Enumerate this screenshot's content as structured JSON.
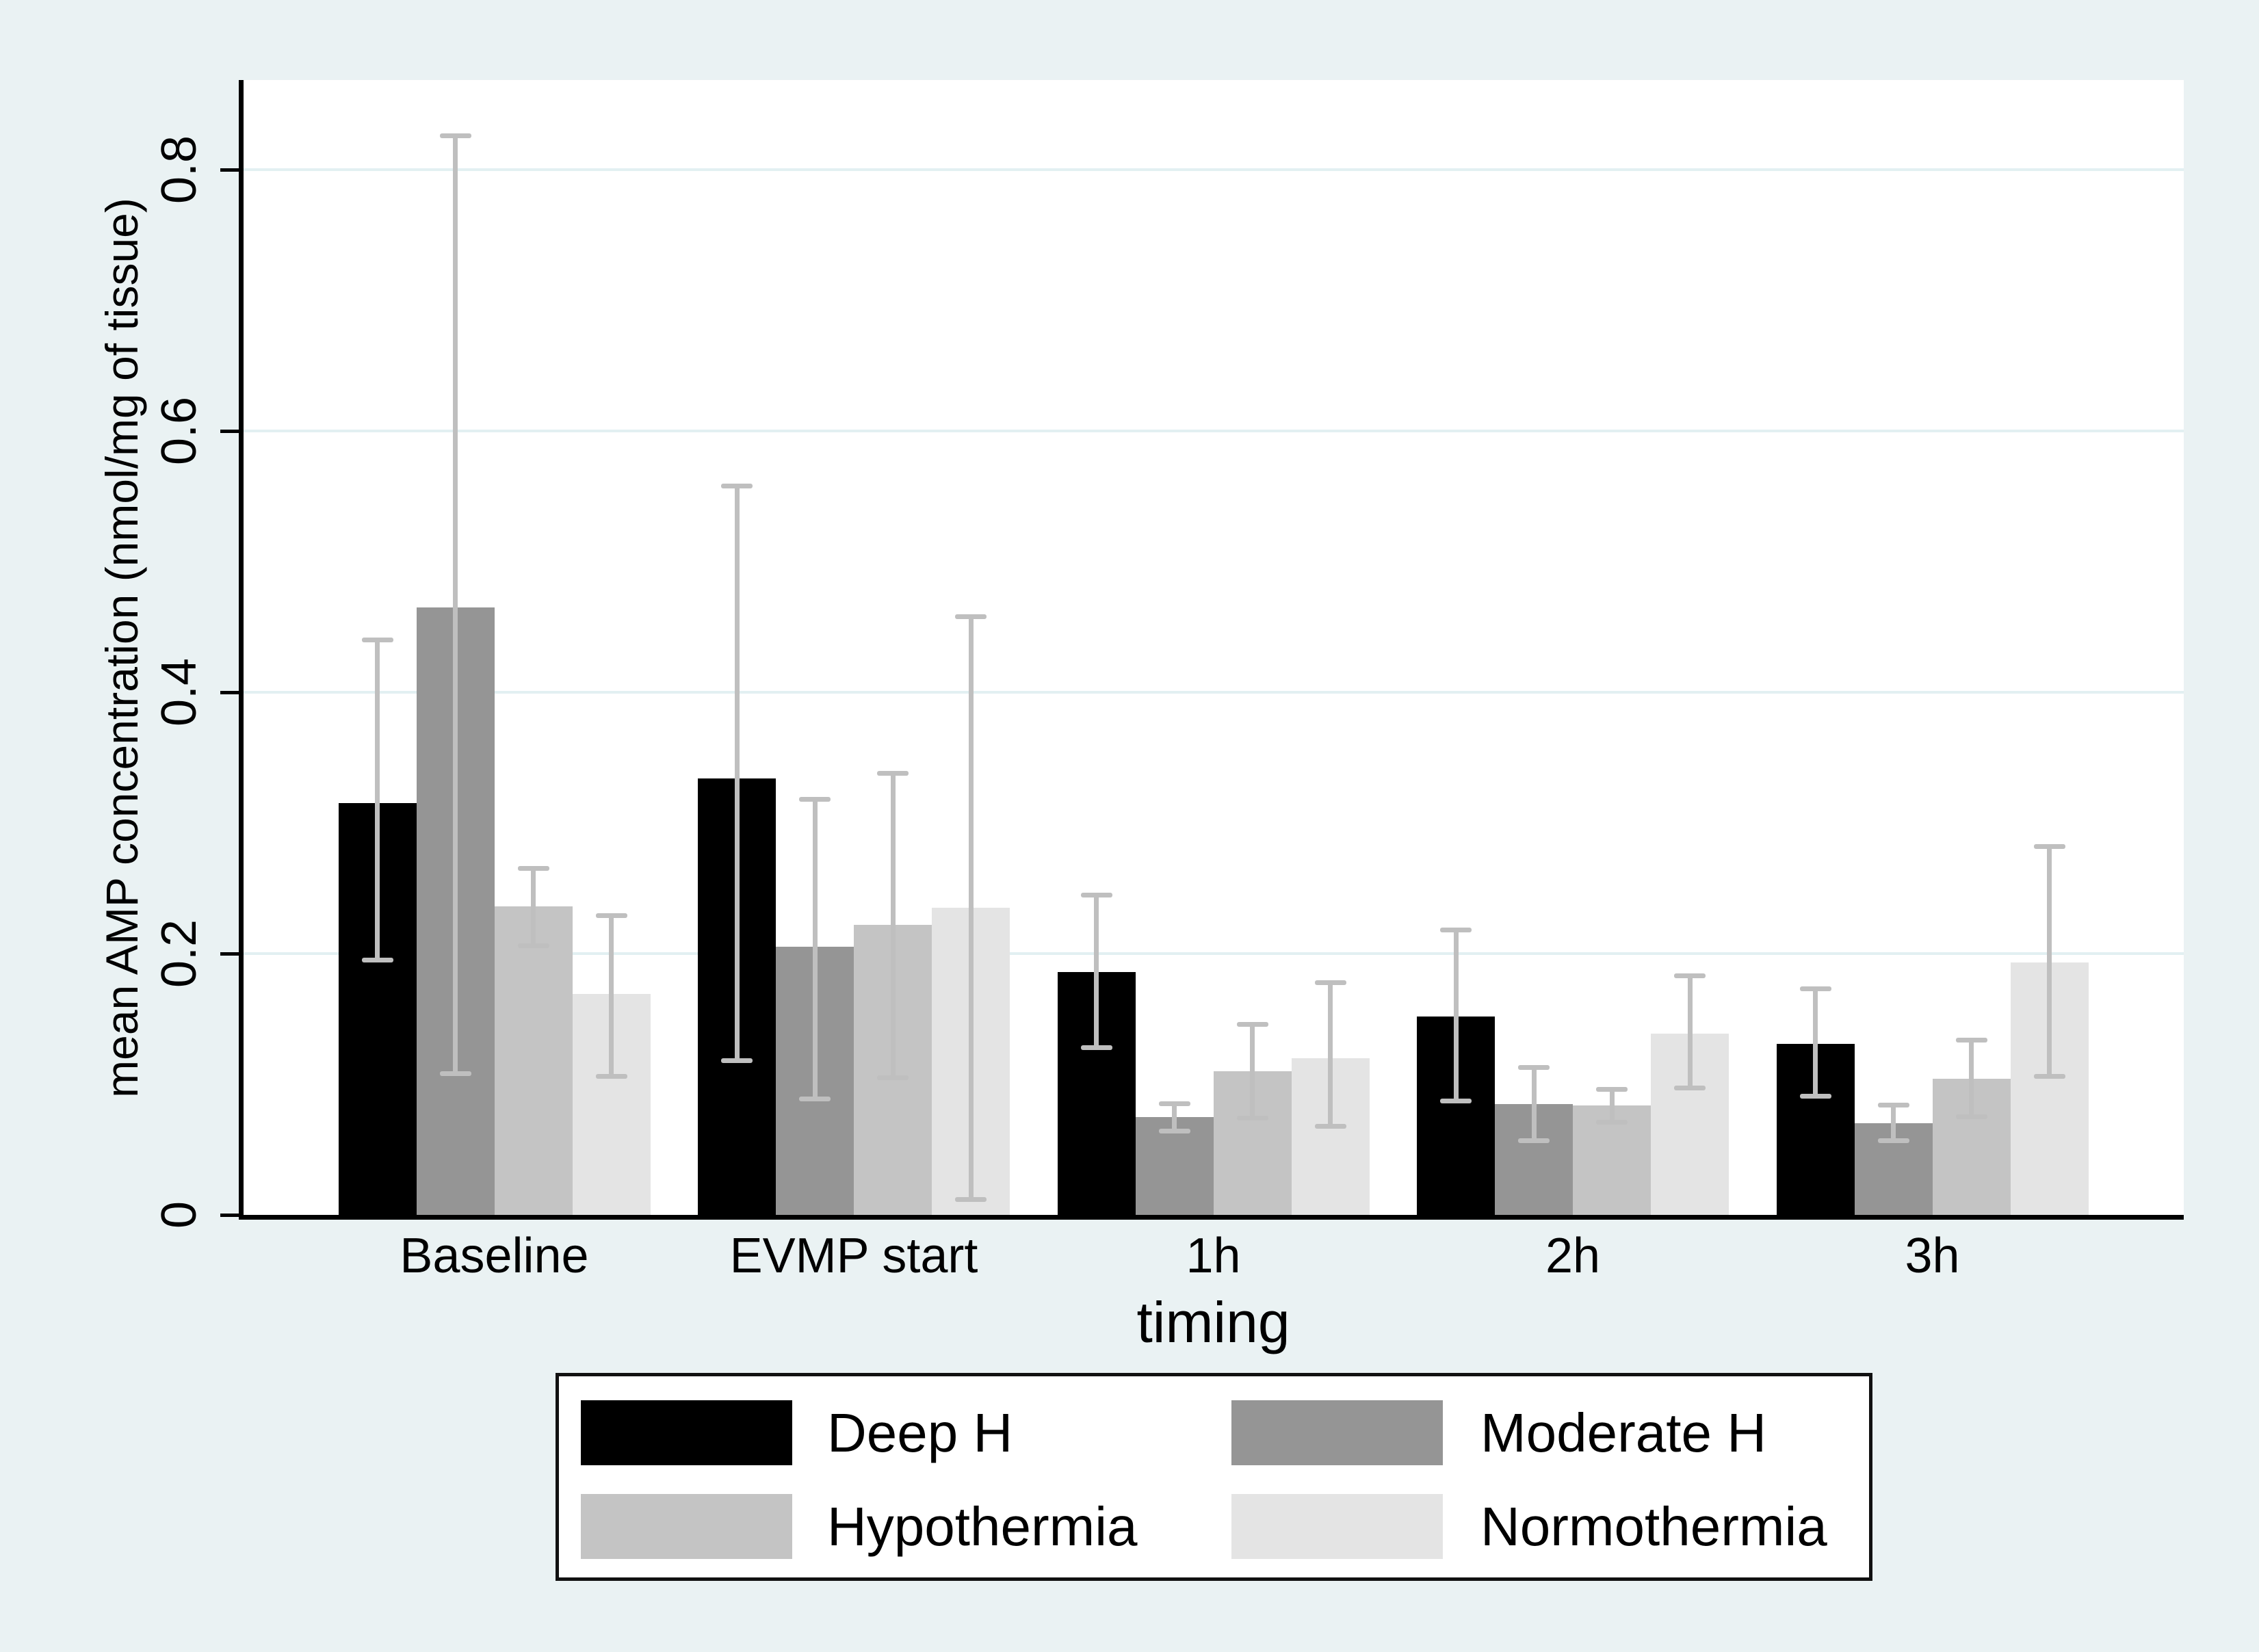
{
  "chart_data": {
    "type": "bar",
    "title": "",
    "xlabel": "timing",
    "ylabel": "mean AMP concentration (nmol/mg of tissue)",
    "categories": [
      "Baseline",
      "EVMP start",
      "1h",
      "2h",
      "3h"
    ],
    "ytick_labels": [
      "0",
      "0.2",
      "0.4",
      "0.6",
      "0.8"
    ],
    "yticks": [
      0,
      0.2,
      0.4,
      0.6,
      0.8
    ],
    "ylim": [
      0,
      0.868
    ],
    "grid": "horizontal",
    "legend_position": "bottom",
    "error_bars": true,
    "error_bar_color": "#bfbfbf",
    "series": [
      {
        "name": "Deep H",
        "color": "#000000",
        "values": [
          0.315,
          0.334,
          0.186,
          0.152,
          0.131
        ],
        "err_lo": [
          0.195,
          0.118,
          0.128,
          0.087,
          0.091
        ],
        "err_hi": [
          0.44,
          0.558,
          0.245,
          0.218,
          0.173
        ]
      },
      {
        "name": "Moderate H",
        "color": "#959595",
        "values": [
          0.465,
          0.205,
          0.075,
          0.085,
          0.07
        ],
        "err_lo": [
          0.108,
          0.089,
          0.064,
          0.057,
          0.057
        ],
        "err_hi": [
          0.826,
          0.318,
          0.085,
          0.113,
          0.084
        ]
      },
      {
        "name": "Hypothermia",
        "color": "#c4c4c4",
        "values": [
          0.236,
          0.222,
          0.11,
          0.084,
          0.104
        ],
        "err_lo": [
          0.206,
          0.105,
          0.074,
          0.071,
          0.075
        ],
        "err_hi": [
          0.265,
          0.338,
          0.146,
          0.096,
          0.134
        ]
      },
      {
        "name": "Normothermia",
        "color": "#e4e4e4",
        "values": [
          0.169,
          0.235,
          0.12,
          0.139,
          0.193
        ],
        "err_lo": [
          0.106,
          0.012,
          0.068,
          0.097,
          0.106
        ],
        "err_hi": [
          0.229,
          0.458,
          0.178,
          0.183,
          0.282
        ]
      }
    ],
    "colors": {
      "background": "#eaf2f3",
      "plot_background": "#ffffff",
      "gridline": "#e2f0f2",
      "axis": "#000000",
      "error_bar": "#bfbfbf"
    }
  }
}
